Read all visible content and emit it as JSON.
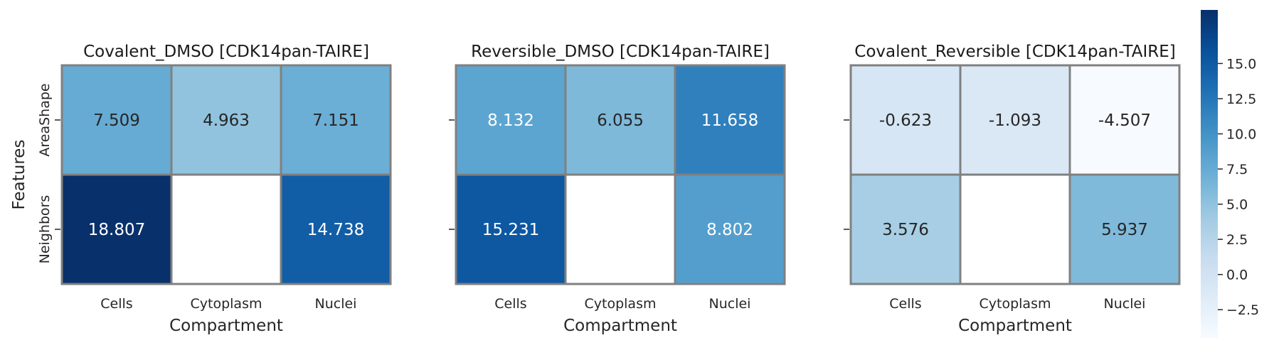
{
  "chart_data": [
    {
      "type": "heatmap",
      "title": "Covalent_DMSO [CDK14pan-TAIRE]",
      "xlabel": "Compartment",
      "ylabel": "Features",
      "categories": [
        "Cells",
        "Cytoplasm",
        "Nuclei"
      ],
      "rows": [
        "AreaShape",
        "Neighbors"
      ],
      "values": [
        [
          7.509,
          4.963,
          7.151
        ],
        [
          18.807,
          null,
          14.738
        ]
      ],
      "labels": [
        [
          "7.509",
          "4.963",
          "7.151"
        ],
        [
          "18.807",
          "",
          "14.738"
        ]
      ]
    },
    {
      "type": "heatmap",
      "title": "Reversible_DMSO [CDK14pan-TAIRE]",
      "xlabel": "Compartment",
      "ylabel": "",
      "categories": [
        "Cells",
        "Cytoplasm",
        "Nuclei"
      ],
      "rows": [
        "AreaShape",
        "Neighbors"
      ],
      "values": [
        [
          8.132,
          6.055,
          11.658
        ],
        [
          15.231,
          null,
          8.802
        ]
      ],
      "labels": [
        [
          "8.132",
          "6.055",
          "11.658"
        ],
        [
          "15.231",
          "",
          "8.802"
        ]
      ]
    },
    {
      "type": "heatmap",
      "title": "Covalent_Reversible [CDK14pan-TAIRE]",
      "xlabel": "Compartment",
      "ylabel": "",
      "categories": [
        "Cells",
        "Cytoplasm",
        "Nuclei"
      ],
      "rows": [
        "AreaShape",
        "Neighbors"
      ],
      "values": [
        [
          -0.623,
          -1.093,
          -4.507
        ],
        [
          3.576,
          null,
          5.937
        ]
      ],
      "labels": [
        [
          "-0.623",
          "-1.093",
          "-4.507"
        ],
        [
          "3.576",
          "",
          "5.937"
        ]
      ]
    }
  ],
  "colorbar": {
    "colormap": "Blues",
    "vmin": -4.507,
    "vmax": 18.807,
    "ticks": [
      15.0,
      12.5,
      10.0,
      7.5,
      5.0,
      2.5,
      0.0,
      -2.5
    ],
    "tick_labels": [
      "15.0",
      "12.5",
      "10.0",
      "7.5",
      "5.0",
      "2.5",
      "0.0",
      "−2.5"
    ]
  },
  "colors": {
    "cell_border": "#808080",
    "dark_text": "#262626",
    "light_text": "#ffffff"
  }
}
